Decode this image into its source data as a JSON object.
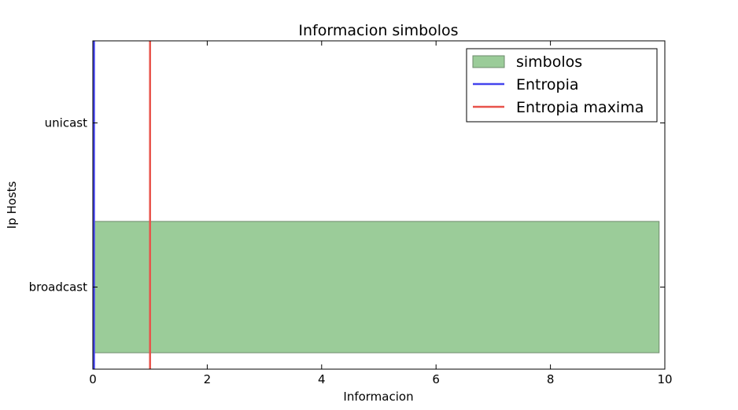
{
  "chart_data": {
    "type": "bar",
    "orientation": "horizontal",
    "title": "Informacion simbolos",
    "xlabel": "Informacion",
    "ylabel": "Ip Hosts",
    "xlim": [
      0,
      10
    ],
    "xticks": [
      "0",
      "2",
      "4",
      "6",
      "8",
      "10"
    ],
    "categories": [
      "broadcast",
      "unicast"
    ],
    "series": [
      {
        "name": "simbolos",
        "values": [
          9.9,
          0.0
        ],
        "color": "#9bcc99"
      }
    ],
    "reference_lines": [
      {
        "name": "Entropia",
        "x": 0.02,
        "color": "#4444ee"
      },
      {
        "name": "Entropia maxima",
        "x": 1.0,
        "color": "#e8524a"
      }
    ],
    "legend": {
      "placement": "top-right",
      "entries": [
        "simbolos",
        "Entropia",
        "Entropia maxima"
      ]
    },
    "grid": false
  }
}
